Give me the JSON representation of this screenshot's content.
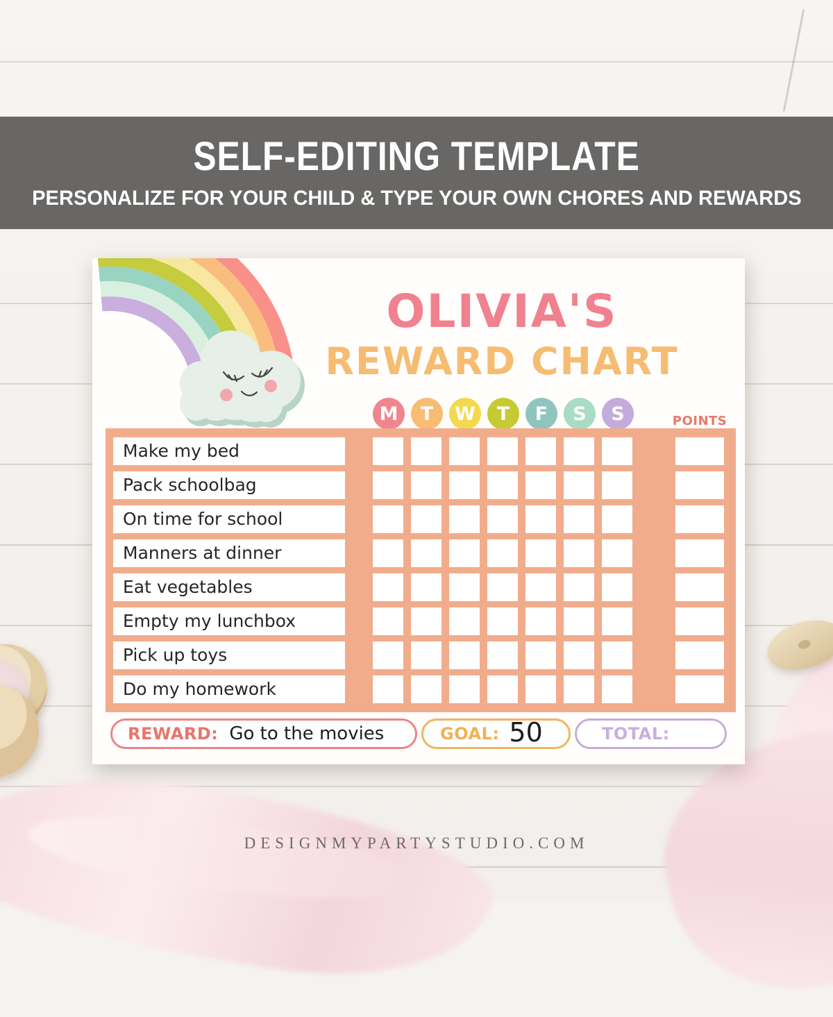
{
  "banner": {
    "title": "SELF-EDITING TEMPLATE",
    "subtitle": "PERSONALIZE FOR YOUR CHILD & TYPE YOUR OWN CHORES AND REWARDS"
  },
  "chart": {
    "child_name": "OLIVIA'S",
    "title": "REWARD CHART",
    "points_label": "POINTS",
    "days": [
      {
        "label": "M",
        "color": "#f1858e"
      },
      {
        "label": "T",
        "color": "#f8bc72"
      },
      {
        "label": "W",
        "color": "#f4d94f"
      },
      {
        "label": "T",
        "color": "#c6ca33"
      },
      {
        "label": "F",
        "color": "#8ec6bf"
      },
      {
        "label": "S",
        "color": "#a9dcc5"
      },
      {
        "label": "S",
        "color": "#c3abdb"
      }
    ],
    "chores": [
      "Make my bed",
      "Pack schoolbag",
      "On time for school",
      "Manners at dinner",
      "Eat vegetables",
      "Empty my lunchbox",
      "Pick up toys",
      "Do my homework"
    ],
    "footer": {
      "reward_label": "REWARD:",
      "reward_value": "Go to the movies",
      "goal_label": "GOAL:",
      "goal_value": "50",
      "total_label": "TOTAL:",
      "total_value": ""
    }
  },
  "watermark": "DESIGNMYPARTYSTUDIO.COM",
  "colors": {
    "banner_bg": "#686765",
    "panel_bg": "#f1ac8c",
    "name_pink": "#f0818e",
    "title_orange": "#f6bc72",
    "points_coral": "#e87a68",
    "reward_border": "#ed8484",
    "reward_label": "#e8756b",
    "goal_border": "#f1b55e",
    "goal_label": "#f2b152",
    "total_border": "#c6abdc",
    "total_label": "#c9afdd",
    "rainbow": [
      "#f9908a",
      "#f9bd7e",
      "#f7e7a0",
      "#c5cc3d",
      "#99d3c2",
      "#d9f0e1",
      "#c9aede"
    ],
    "cloud": "#e7efe9",
    "cloud_shadow": "#b8d4c8"
  }
}
